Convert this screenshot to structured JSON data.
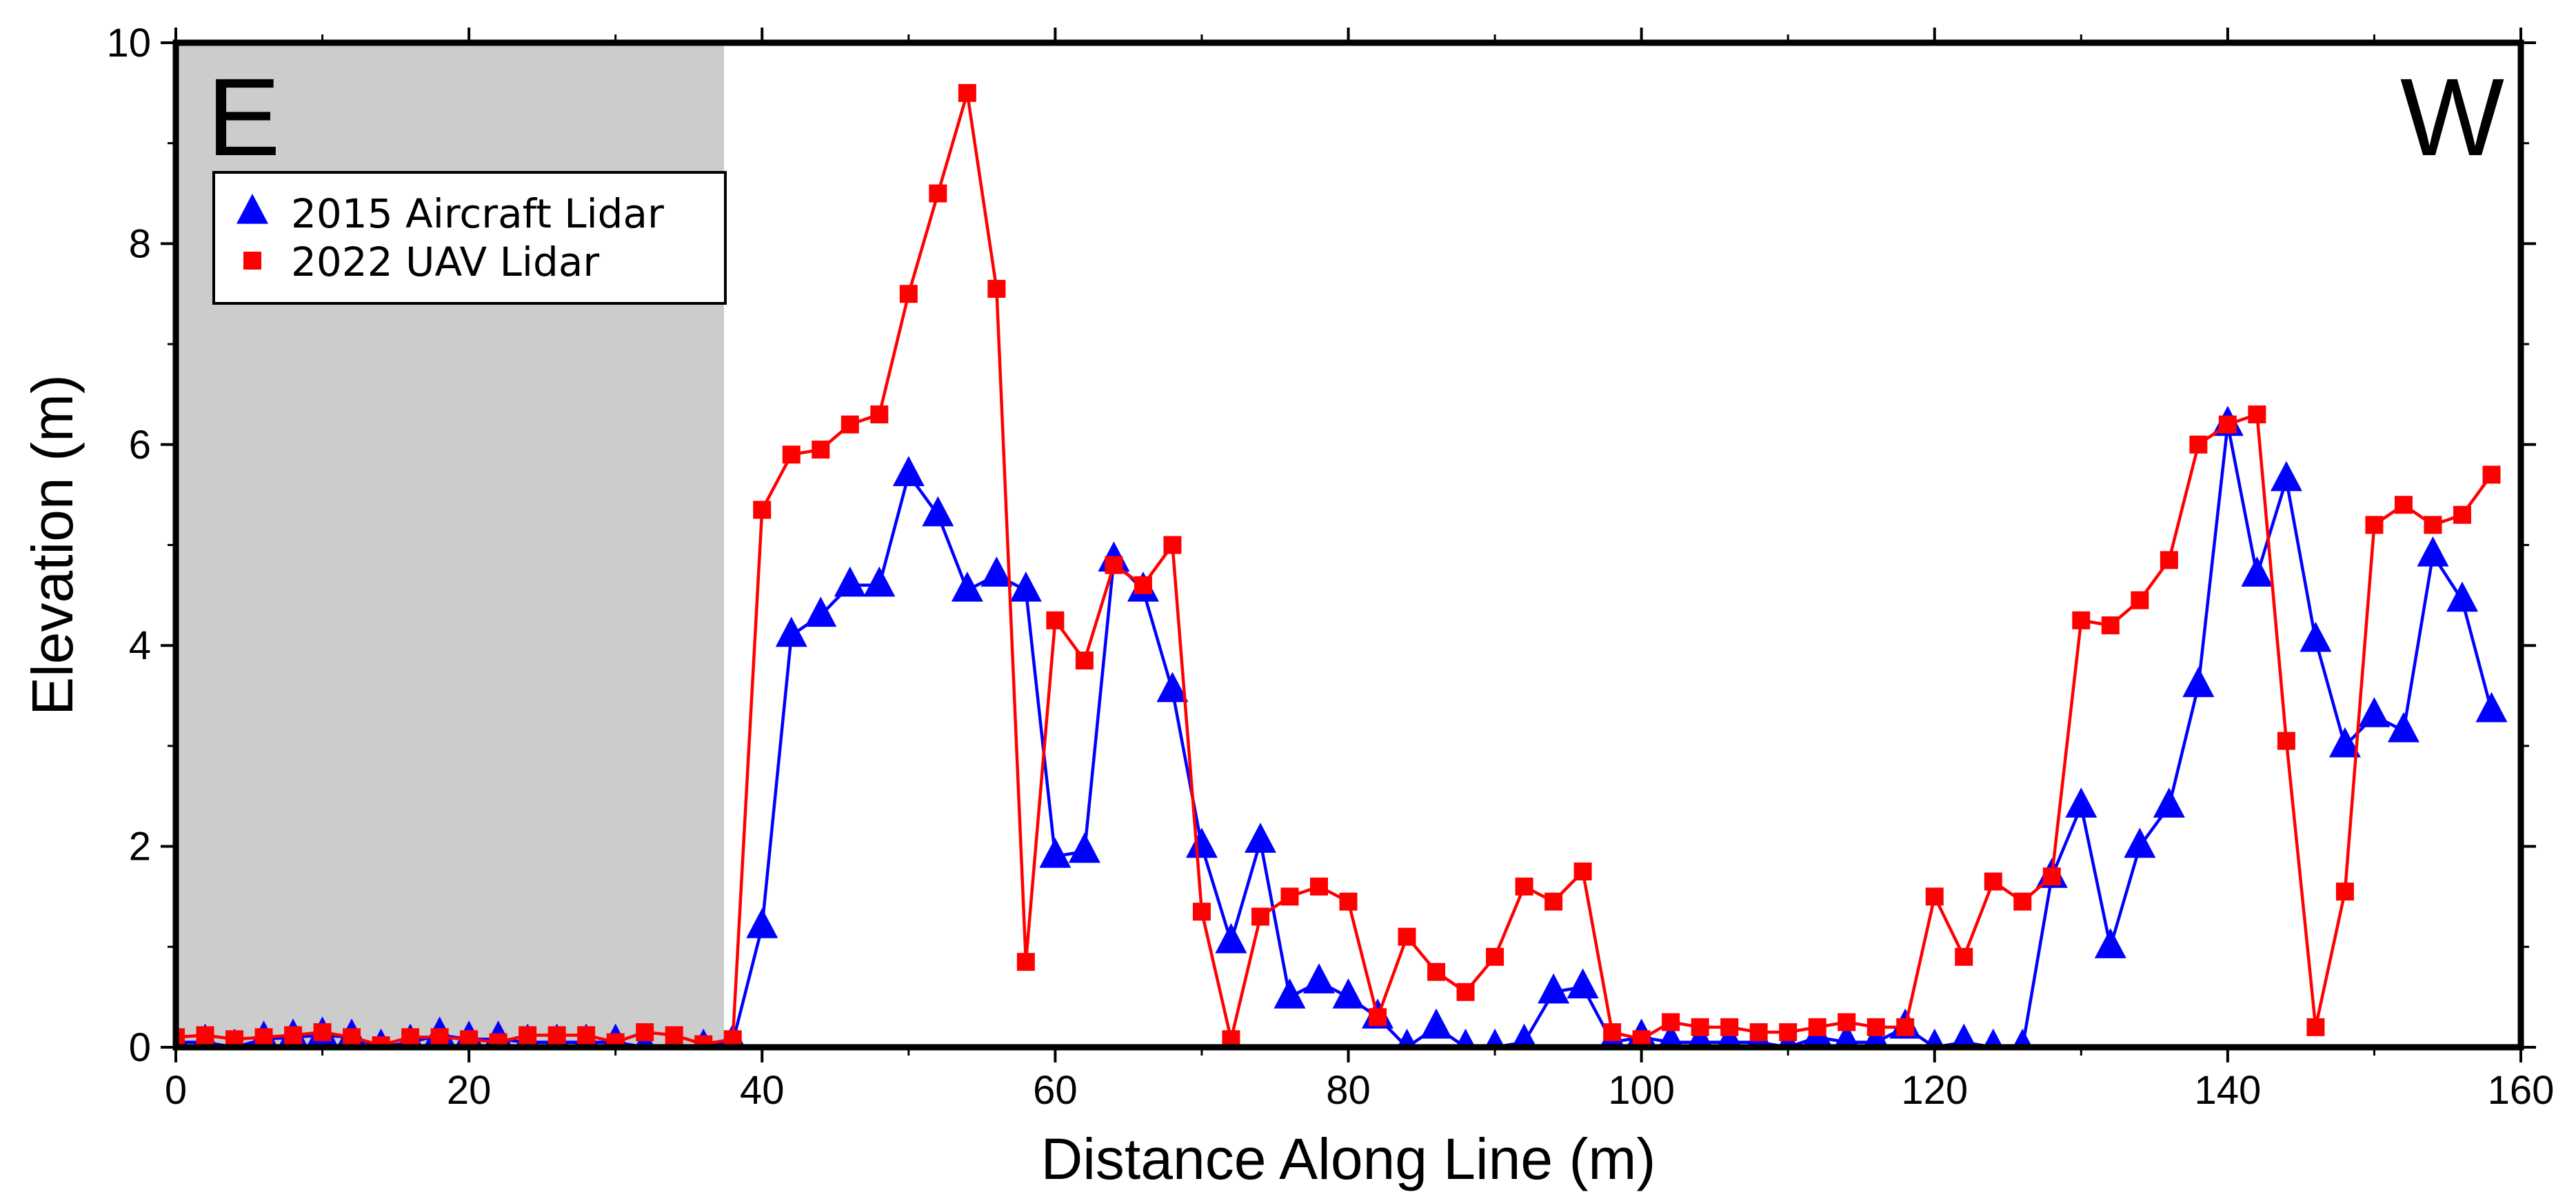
{
  "chart_data": {
    "type": "line",
    "xlabel": "Distance Along Line (m)",
    "ylabel": "Elevation (m)",
    "xlim": [
      0,
      160
    ],
    "ylim": [
      0,
      10
    ],
    "x_ticks": [
      0,
      20,
      40,
      60,
      80,
      100,
      120,
      140,
      160
    ],
    "y_ticks": [
      0,
      2,
      4,
      6,
      8,
      10
    ],
    "grid": false,
    "corner_labels": {
      "left": "E",
      "right": "W"
    },
    "shaded_region": {
      "x_start": 0,
      "x_end": 37.4,
      "color": "#cccccc"
    },
    "legend": {
      "position": "top-left"
    },
    "series": [
      {
        "name": "2015 Aircraft Lidar",
        "color": "#0000ff",
        "marker": "triangle",
        "points": [
          [
            0,
            0.05
          ],
          [
            2,
            0.05
          ],
          [
            4,
            0
          ],
          [
            6,
            0.08
          ],
          [
            8,
            0.1
          ],
          [
            10,
            0.12
          ],
          [
            12,
            0.1
          ],
          [
            14,
            0
          ],
          [
            16,
            0.05
          ],
          [
            18,
            0.12
          ],
          [
            20,
            0.08
          ],
          [
            22,
            0.08
          ],
          [
            24,
            0.05
          ],
          [
            26,
            0.05
          ],
          [
            28,
            0.05
          ],
          [
            30,
            0.05
          ],
          [
            32,
            0
          ],
          [
            34,
            0
          ],
          [
            36,
            0
          ],
          [
            38,
            0.05
          ],
          [
            40,
            1.2
          ],
          [
            42,
            4.1
          ],
          [
            44,
            4.3
          ],
          [
            46,
            4.6
          ],
          [
            48,
            4.6
          ],
          [
            50,
            5.7
          ],
          [
            52,
            5.3
          ],
          [
            54,
            4.55
          ],
          [
            56,
            4.7
          ],
          [
            58,
            4.55
          ],
          [
            60,
            1.9
          ],
          [
            62,
            1.95
          ],
          [
            64,
            4.85
          ],
          [
            66,
            4.55
          ],
          [
            68,
            3.55
          ],
          [
            70,
            2.0
          ],
          [
            72,
            1.05
          ],
          [
            74,
            2.05
          ],
          [
            76,
            0.5
          ],
          [
            78,
            0.65
          ],
          [
            80,
            0.5
          ],
          [
            82,
            0.3
          ],
          [
            84,
            0
          ],
          [
            86,
            0.2
          ],
          [
            88,
            0
          ],
          [
            90,
            0
          ],
          [
            92,
            0.05
          ],
          [
            94,
            0.55
          ],
          [
            96,
            0.6
          ],
          [
            98,
            0.05
          ],
          [
            100,
            0.1
          ],
          [
            102,
            0.05
          ],
          [
            104,
            0.05
          ],
          [
            106,
            0.05
          ],
          [
            108,
            0.05
          ],
          [
            110,
            0
          ],
          [
            112,
            0.1
          ],
          [
            114,
            0.05
          ],
          [
            116,
            0.05
          ],
          [
            118,
            0.2
          ],
          [
            120,
            0
          ],
          [
            122,
            0.05
          ],
          [
            124,
            0
          ],
          [
            126,
            0
          ],
          [
            128,
            1.7
          ],
          [
            130,
            2.4
          ],
          [
            132,
            1.0
          ],
          [
            134,
            2.0
          ],
          [
            136,
            2.4
          ],
          [
            138,
            3.6
          ],
          [
            140,
            6.2
          ],
          [
            142,
            4.7
          ],
          [
            144,
            5.65
          ],
          [
            146,
            4.05
          ],
          [
            148,
            3.0
          ],
          [
            150,
            3.3
          ],
          [
            152,
            3.15
          ],
          [
            154,
            4.9
          ],
          [
            156,
            4.45
          ],
          [
            158,
            3.35
          ]
        ]
      },
      {
        "name": "2022 UAV Lidar",
        "color": "#ff0000",
        "marker": "square",
        "points": [
          [
            0,
            0.1
          ],
          [
            2,
            0.12
          ],
          [
            4,
            0.08
          ],
          [
            6,
            0.1
          ],
          [
            8,
            0.12
          ],
          [
            10,
            0.15
          ],
          [
            12,
            0.1
          ],
          [
            14,
            0.02
          ],
          [
            16,
            0.1
          ],
          [
            18,
            0.1
          ],
          [
            20,
            0.08
          ],
          [
            22,
            0.05
          ],
          [
            24,
            0.12
          ],
          [
            26,
            0.12
          ],
          [
            28,
            0.12
          ],
          [
            30,
            0.05
          ],
          [
            32,
            0.15
          ],
          [
            34,
            0.12
          ],
          [
            36,
            0.03
          ],
          [
            38,
            0.08
          ],
          [
            40,
            5.35
          ],
          [
            42,
            5.9
          ],
          [
            44,
            5.95
          ],
          [
            46,
            6.2
          ],
          [
            48,
            6.3
          ],
          [
            50,
            7.5
          ],
          [
            52,
            8.5
          ],
          [
            54,
            9.5
          ],
          [
            56,
            7.55
          ],
          [
            58,
            0.85
          ],
          [
            60,
            4.25
          ],
          [
            62,
            3.85
          ],
          [
            64,
            4.8
          ],
          [
            66,
            4.6
          ],
          [
            68,
            5.0
          ],
          [
            70,
            1.35
          ],
          [
            72,
            0.08
          ],
          [
            74,
            1.3
          ],
          [
            76,
            1.5
          ],
          [
            78,
            1.6
          ],
          [
            80,
            1.45
          ],
          [
            82,
            0.3
          ],
          [
            84,
            1.1
          ],
          [
            86,
            0.75
          ],
          [
            88,
            0.55
          ],
          [
            90,
            0.9
          ],
          [
            92,
            1.6
          ],
          [
            94,
            1.45
          ],
          [
            96,
            1.75
          ],
          [
            98,
            0.15
          ],
          [
            100,
            0.08
          ],
          [
            102,
            0.25
          ],
          [
            104,
            0.2
          ],
          [
            106,
            0.2
          ],
          [
            108,
            0.15
          ],
          [
            110,
            0.15
          ],
          [
            112,
            0.2
          ],
          [
            114,
            0.25
          ],
          [
            116,
            0.2
          ],
          [
            118,
            0.2
          ],
          [
            120,
            1.5
          ],
          [
            122,
            0.9
          ],
          [
            124,
            1.65
          ],
          [
            126,
            1.45
          ],
          [
            128,
            1.7
          ],
          [
            130,
            4.25
          ],
          [
            132,
            4.2
          ],
          [
            134,
            4.45
          ],
          [
            136,
            4.85
          ],
          [
            138,
            6.0
          ],
          [
            140,
            6.2
          ],
          [
            142,
            6.3
          ],
          [
            144,
            3.05
          ],
          [
            146,
            0.2
          ],
          [
            148,
            1.55
          ],
          [
            150,
            5.2
          ],
          [
            152,
            5.4
          ],
          [
            154,
            5.2
          ],
          [
            156,
            5.3
          ],
          [
            158,
            5.7
          ]
        ]
      }
    ]
  }
}
